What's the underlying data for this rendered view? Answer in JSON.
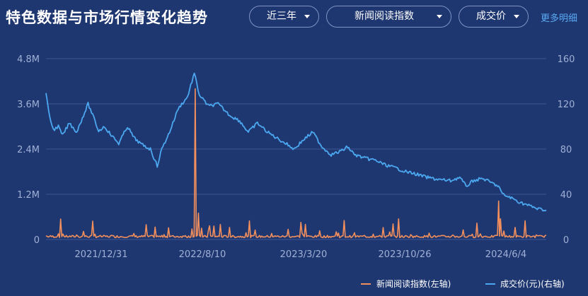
{
  "header": {
    "title": "特色数据与市场行情变化趋势",
    "range_select": "近三年",
    "index_select": "新闻阅读指数",
    "metric_select": "成交价",
    "more_link": "更多明细"
  },
  "colors": {
    "background": "#1f3770",
    "news_index": "#f28f5c",
    "price": "#4ba8f0",
    "grid": "#3c5493",
    "axis_text": "#9fb0d6"
  },
  "chart_data": {
    "type": "line",
    "title": "",
    "xlabel": "",
    "ylabel": "",
    "x_ticks": [
      "2021/12/31",
      "2022/8/10",
      "2023/3/20",
      "2023/10/26",
      "2024/6/4"
    ],
    "x_range": [
      "2021-09-04",
      "2024-09-01"
    ],
    "y_left": {
      "ticks": [
        "0",
        "1.2M",
        "2.4M",
        "3.6M",
        "4.8M"
      ],
      "range": [
        0,
        4800000
      ]
    },
    "y_right": {
      "ticks": [
        "0",
        "40",
        "80",
        "120",
        "160"
      ],
      "range": [
        0,
        160
      ]
    },
    "grid": true,
    "legend_position": "bottom-right",
    "series": [
      {
        "name": "新闻阅读指数(左轴)",
        "axis": "left",
        "baseline": 50000,
        "points": [
          [
            "2021-09-04",
            100000
          ],
          [
            "2021-10-01",
            150000
          ],
          [
            "2021-11-10",
            120000
          ],
          [
            "2021-12-20",
            140000
          ],
          [
            "2022-01-25",
            110000
          ],
          [
            "2022-03-15",
            160000
          ],
          [
            "2022-05-20",
            130000
          ],
          [
            "2022-07-20",
            280000
          ],
          [
            "2022-07-27",
            4000000
          ],
          [
            "2022-08-03",
            700000
          ],
          [
            "2022-08-10",
            300000
          ],
          [
            "2022-08-25",
            250000
          ],
          [
            "2022-09-20",
            400000
          ],
          [
            "2022-10-10",
            320000
          ],
          [
            "2022-11-15",
            180000
          ],
          [
            "2022-12-05",
            250000
          ],
          [
            "2023-01-10",
            160000
          ],
          [
            "2023-02-15",
            270000
          ],
          [
            "2023-03-20",
            120000
          ],
          [
            "2023-04-25",
            230000
          ],
          [
            "2023-06-05",
            170000
          ],
          [
            "2023-07-10",
            180000
          ],
          [
            "2023-08-20",
            140000
          ],
          [
            "2023-09-25",
            200000
          ],
          [
            "2023-11-10",
            130000
          ],
          [
            "2023-12-20",
            170000
          ],
          [
            "2024-02-10",
            120000
          ],
          [
            "2024-04-10",
            150000
          ],
          [
            "2024-05-20",
            1020000
          ],
          [
            "2024-05-24",
            550000
          ],
          [
            "2024-06-25",
            320000
          ],
          [
            "2024-08-10",
            120000
          ],
          [
            "2024-09-01",
            110000
          ]
        ]
      },
      {
        "name": "成交价(元)(右轴)",
        "axis": "right",
        "points": [
          [
            "2021-09-04",
            130
          ],
          [
            "2021-09-10",
            112
          ],
          [
            "2021-09-20",
            97
          ],
          [
            "2021-10-01",
            100
          ],
          [
            "2021-10-10",
            92
          ],
          [
            "2021-10-25",
            103
          ],
          [
            "2021-11-10",
            95
          ],
          [
            "2021-11-25",
            110
          ],
          [
            "2021-12-05",
            120
          ],
          [
            "2021-12-15",
            110
          ],
          [
            "2021-12-28",
            96
          ],
          [
            "2022-01-10",
            100
          ],
          [
            "2022-01-25",
            92
          ],
          [
            "2022-02-10",
            85
          ],
          [
            "2022-03-01",
            100
          ],
          [
            "2022-03-15",
            90
          ],
          [
            "2022-04-01",
            84
          ],
          [
            "2022-04-20",
            80
          ],
          [
            "2022-05-05",
            65
          ],
          [
            "2022-05-15",
            80
          ],
          [
            "2022-06-01",
            95
          ],
          [
            "2022-06-20",
            116
          ],
          [
            "2022-07-10",
            126
          ],
          [
            "2022-07-25",
            147
          ],
          [
            "2022-08-05",
            128
          ],
          [
            "2022-08-25",
            118
          ],
          [
            "2022-09-15",
            120
          ],
          [
            "2022-10-10",
            110
          ],
          [
            "2022-11-01",
            105
          ],
          [
            "2022-11-20",
            95
          ],
          [
            "2022-12-10",
            103
          ],
          [
            "2023-01-01",
            95
          ],
          [
            "2023-01-20",
            90
          ],
          [
            "2023-02-10",
            85
          ],
          [
            "2023-02-28",
            80
          ],
          [
            "2023-03-20",
            88
          ],
          [
            "2023-04-10",
            95
          ],
          [
            "2023-04-30",
            82
          ],
          [
            "2023-05-20",
            75
          ],
          [
            "2023-06-10",
            78
          ],
          [
            "2023-06-25",
            82
          ],
          [
            "2023-07-10",
            75
          ],
          [
            "2023-08-01",
            72
          ],
          [
            "2023-08-25",
            70
          ],
          [
            "2023-09-15",
            66
          ],
          [
            "2023-10-10",
            63
          ],
          [
            "2023-10-30",
            60
          ],
          [
            "2023-11-20",
            58
          ],
          [
            "2023-12-15",
            55
          ],
          [
            "2024-01-10",
            53
          ],
          [
            "2024-02-05",
            52
          ],
          [
            "2024-02-25",
            55
          ],
          [
            "2024-03-10",
            47
          ],
          [
            "2024-03-25",
            52
          ],
          [
            "2024-04-15",
            54
          ],
          [
            "2024-05-05",
            50
          ],
          [
            "2024-05-20",
            47
          ],
          [
            "2024-05-28",
            40
          ],
          [
            "2024-06-15",
            37
          ],
          [
            "2024-07-05",
            33
          ],
          [
            "2024-07-25",
            30
          ],
          [
            "2024-08-15",
            27
          ],
          [
            "2024-09-01",
            26
          ]
        ]
      }
    ]
  }
}
